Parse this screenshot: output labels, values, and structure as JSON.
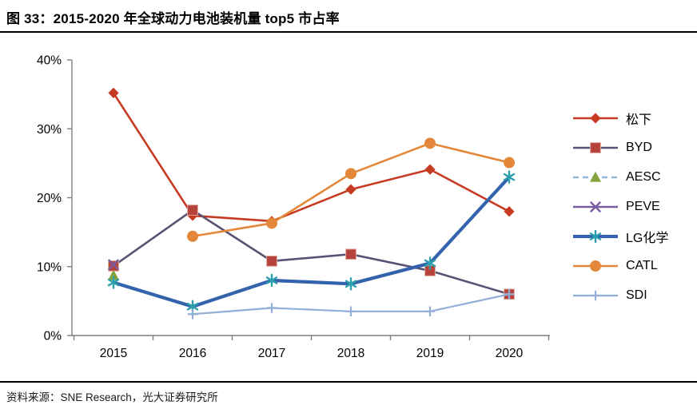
{
  "header": {},
  "footer": {
    "source": "资料来源：SNE Research，光大证券研究所"
  },
  "chart_data": {
    "type": "line",
    "title": "图 33：2015-2020 年全球动力电池装机量 top5 市占率",
    "xlabel": "",
    "ylabel": "",
    "categories": [
      "2015",
      "2016",
      "2017",
      "2018",
      "2019",
      "2020"
    ],
    "ylim": [
      0,
      40
    ],
    "ytick_step": 10,
    "ytick_labels": [
      "0%",
      "10%",
      "20%",
      "30%",
      "40%"
    ],
    "grid": false,
    "legend_position": "right",
    "axis_color": "#7f7f7f",
    "series": [
      {
        "name": "松下",
        "color": "#c73b23",
        "marker": "diamond",
        "marker_color": "#c73b23",
        "line_width": 2.6,
        "dash": "",
        "values": [
          35.2,
          17.4,
          16.6,
          21.2,
          24.1,
          18.0
        ]
      },
      {
        "name": "BYD",
        "color": "#5b5174",
        "marker": "square",
        "marker_color": "#b5433b",
        "line_width": 2.6,
        "dash": "",
        "values": [
          10.1,
          18.2,
          10.8,
          11.8,
          9.4,
          6.0
        ]
      },
      {
        "name": "AESC",
        "color": "#8fb8dc",
        "marker": "triangle",
        "marker_color": "#84a33d",
        "line_width": 2.6,
        "dash": "7,5",
        "values": [
          8.7,
          null,
          null,
          null,
          null,
          null
        ]
      },
      {
        "name": "PEVE",
        "color": "#7a5da0",
        "marker": "x",
        "marker_color": "#7a5da0",
        "line_width": 2.6,
        "dash": "",
        "values": [
          10.3,
          null,
          null,
          null,
          null,
          null
        ]
      },
      {
        "name": "LG化学",
        "color": "#3463ae",
        "marker": "asterisk",
        "marker_color": "#2d9fac",
        "line_width": 4.2,
        "dash": "",
        "values": [
          7.7,
          4.2,
          8.0,
          7.5,
          10.5,
          23.0
        ]
      },
      {
        "name": "CATL",
        "color": "#e3883a",
        "marker": "circle",
        "marker_color": "#e3883a",
        "line_width": 2.6,
        "dash": "",
        "values": [
          null,
          14.4,
          16.3,
          23.5,
          27.9,
          25.1
        ]
      },
      {
        "name": "SDI",
        "color": "#93afd7",
        "marker": "plus",
        "marker_color": "#93afd7",
        "line_width": 2.2,
        "dash": "",
        "values": [
          null,
          3.1,
          4.0,
          3.5,
          3.5,
          6.0
        ]
      }
    ]
  }
}
